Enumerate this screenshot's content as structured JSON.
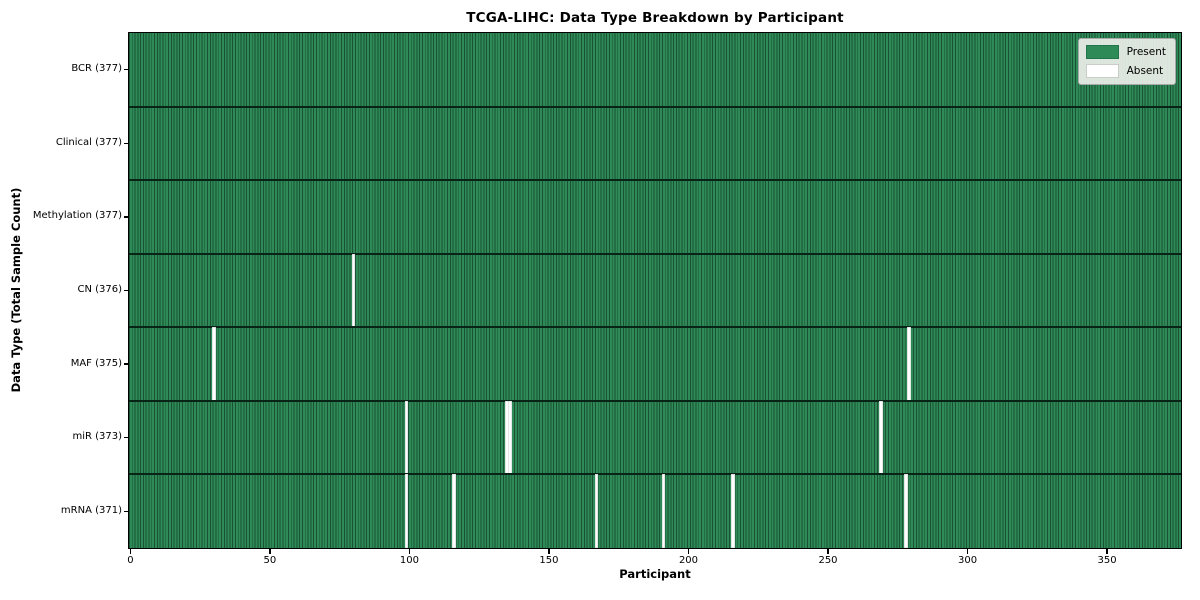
{
  "legend": {
    "present_label": "Present",
    "absent_label": "Absent"
  },
  "colors": {
    "present": "#2e8b57",
    "absent": "#ffffff",
    "cell_edge": "#1b5236",
    "row_divider": "#082416",
    "plot_border": "#000000",
    "legend_bg": "#ebefe9",
    "legend_border": "#a8a8a8"
  },
  "chart_data": {
    "type": "heatmap",
    "title": "TCGA-LIHC: Data Type Breakdown by Participant",
    "xlabel": "Participant",
    "ylabel": "Data Type (Total Sample Count)",
    "n_participants": 377,
    "x_range": [
      -0.5,
      376.5
    ],
    "x_ticks": [
      0,
      50,
      100,
      150,
      200,
      250,
      300,
      350
    ],
    "legend_entries": [
      "Present",
      "Absent"
    ],
    "grid": "row dividers between data types, vertical cell edges per participant",
    "legend_position": "upper right",
    "rows": [
      {
        "label": "BCR (377)",
        "data_type": "BCR",
        "total": 377,
        "absent_participants": []
      },
      {
        "label": "Clinical (377)",
        "data_type": "Clinical",
        "total": 377,
        "absent_participants": []
      },
      {
        "label": "Methylation (377)",
        "data_type": "Methylation",
        "total": 377,
        "absent_participants": []
      },
      {
        "label": "CN (376)",
        "data_type": "CN",
        "total": 376,
        "absent_participants": [
          80
        ]
      },
      {
        "label": "MAF (375)",
        "data_type": "MAF",
        "total": 375,
        "absent_participants": [
          30,
          279
        ]
      },
      {
        "label": "miR (373)",
        "data_type": "miR",
        "total": 373,
        "absent_participants": [
          99,
          135,
          136,
          269
        ]
      },
      {
        "label": "mRNA (371)",
        "data_type": "mRNA",
        "total": 371,
        "absent_participants": [
          99,
          116,
          167,
          191,
          216,
          278
        ]
      }
    ]
  }
}
